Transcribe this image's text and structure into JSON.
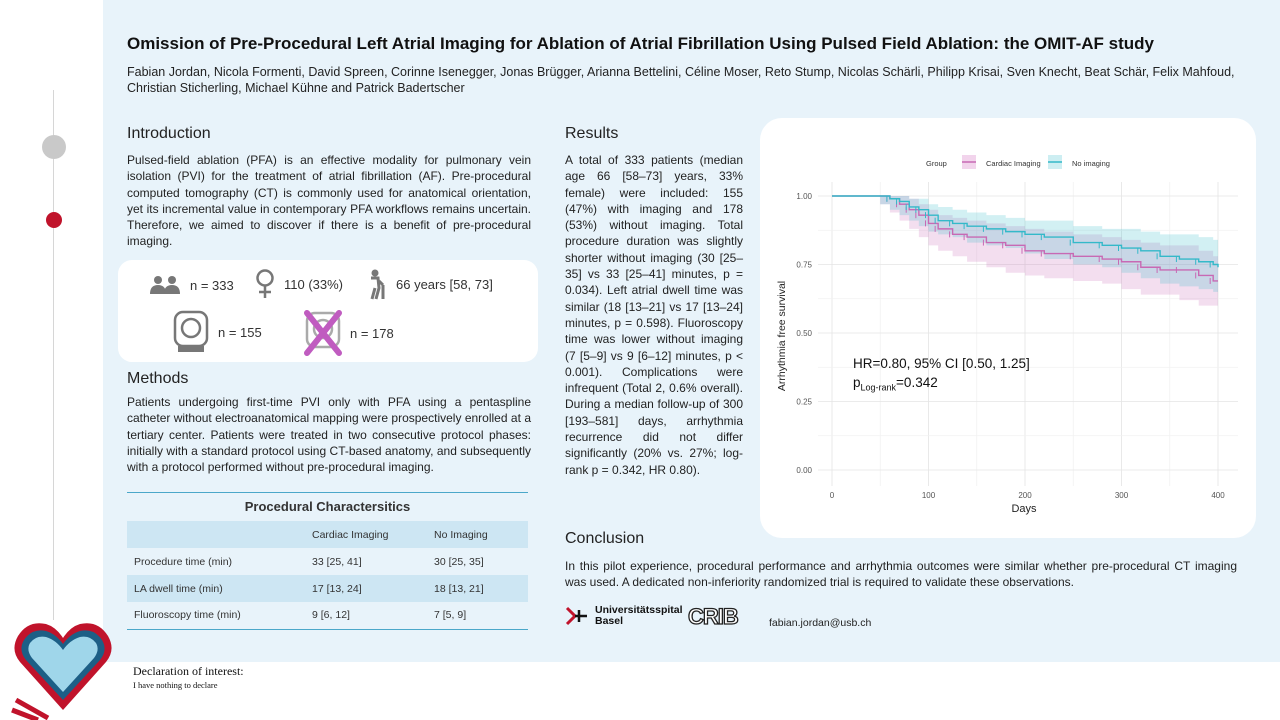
{
  "header": {
    "title": "Omission of Pre-Procedural Left Atrial Imaging for Ablation of Atrial Fibrillation Using Pulsed Field Ablation: the OMIT-AF study",
    "authors": "Fabian Jordan, Nicola Formenti, David Spreen, Corinne Isenegger, Jonas Brügger, Arianna Bettelini, Céline Moser, Reto Stump, Nicolas Schärli, Philipp Krisai, Sven Knecht, Beat Schär, Felix Mahfoud, Christian Sticherling, Michael Kühne and Patrick Badertscher"
  },
  "introduction": {
    "heading": "Introduction",
    "text": "Pulsed-field ablation (PFA) is an effective modality for pulmonary vein isolation (PVI) for the treatment of atrial fibrillation (AF). Pre-procedural computed tomography (CT) is commonly used for anatomical orientation, yet its incremental value in contemporary PFA workflows remains uncertain. Therefore, we aimed to discover if there is a benefit of pre-procedural imaging."
  },
  "stats": {
    "patients": "n = 333",
    "female": "110 (33%)",
    "age": "66 years [58, 73]",
    "imaging": "n = 155",
    "no_imaging": "n = 178",
    "icons": [
      "people-icon",
      "female-icon",
      "elderly-icon",
      "ct-scanner-icon",
      "no-ct-icon"
    ]
  },
  "methods": {
    "heading": "Methods",
    "text": "Patients undergoing first-time PVI only with PFA using a pentaspline catheter without electroanatomical mapping were prospectively enrolled at a tertiary center. Patients were treated in two consecutive protocol phases: initially with a standard protocol using CT-based anatomy, and subsequently with a protocol performed without pre-procedural imaging."
  },
  "table": {
    "title": "Procedural Charactersitics",
    "columns": [
      "",
      "Cardiac Imaging",
      "No Imaging"
    ],
    "rows": [
      [
        "Procedure time (min)",
        "33 [25, 41]",
        "30 [25, 35]"
      ],
      [
        "LA dwell time (min)",
        "17 [13, 24]",
        "18 [13, 21]"
      ],
      [
        "Fluoroscopy time (min)",
        "9 [6, 12]",
        "7 [5, 9]"
      ]
    ]
  },
  "results": {
    "heading": "Results",
    "text": "A total of 333 patients (median age 66 [58–73] years, 33% female) were included: 155 (47%) with imaging and 178 (53%) without imaging. Total procedure duration was slightly shorter without imaging (30 [25–35] vs 33 [25–41] minutes, p = 0.034). Left atrial dwell time was similar (18 [13–21] vs 17 [13–24] minutes, p = 0.598). Fluoroscopy time was lower without imaging (7 [5–9] vs 9 [6–12] minutes, p < 0.001). Complications were infrequent (Total 2, 0.6% overall). During a median follow-up of 300 [193–581] days, arrhythmia recurrence did not differ significantly (20% vs. 27%; log-rank p = 0.342, HR 0.80)."
  },
  "conclusion": {
    "heading": "Conclusion",
    "text": "In this pilot experience, procedural performance and arrhythmia outcomes were similar whether pre-procedural CT imaging was used. A dedicated non-inferiority randomized trial is required to validate these observations."
  },
  "chart_data": {
    "type": "line",
    "xlabel": "Days",
    "ylabel": "Arrhythmia free survival",
    "xlim": [
      0,
      400
    ],
    "ylim": [
      0,
      1
    ],
    "xticks": [
      "0",
      "100",
      "200",
      "300",
      "400"
    ],
    "yticks": [
      "0.00",
      "0.25",
      "0.50",
      "0.75",
      "1.00"
    ],
    "legend_title": "Group",
    "legend_position": "top",
    "grid": true,
    "series": [
      {
        "name": "Cardiac Imaging",
        "color": "#c869b4",
        "x": [
          0,
          50,
          60,
          70,
          80,
          90,
          100,
          110,
          125,
          140,
          160,
          180,
          200,
          220,
          250,
          280,
          300,
          320,
          340,
          360,
          380,
          395,
          400
        ],
        "y": [
          1.0,
          1.0,
          0.99,
          0.97,
          0.95,
          0.93,
          0.9,
          0.88,
          0.86,
          0.85,
          0.83,
          0.82,
          0.8,
          0.79,
          0.78,
          0.77,
          0.76,
          0.74,
          0.73,
          0.73,
          0.71,
          0.69,
          0.69
        ],
        "lower": [
          1.0,
          1.0,
          0.97,
          0.94,
          0.91,
          0.88,
          0.85,
          0.82,
          0.8,
          0.78,
          0.76,
          0.74,
          0.72,
          0.71,
          0.7,
          0.69,
          0.68,
          0.66,
          0.64,
          0.64,
          0.62,
          0.6,
          0.6
        ],
        "upper": [
          1.0,
          1.0,
          1.0,
          1.0,
          0.99,
          0.97,
          0.95,
          0.93,
          0.92,
          0.91,
          0.9,
          0.89,
          0.88,
          0.87,
          0.86,
          0.85,
          0.84,
          0.83,
          0.82,
          0.82,
          0.8,
          0.78,
          0.78
        ]
      },
      {
        "name": "No imaging",
        "color": "#34b9c9",
        "x": [
          0,
          50,
          60,
          70,
          80,
          90,
          100,
          110,
          125,
          140,
          160,
          180,
          200,
          220,
          250,
          280,
          300,
          320,
          340,
          360,
          380,
          395,
          400
        ],
        "y": [
          1.0,
          1.0,
          0.99,
          0.98,
          0.96,
          0.95,
          0.93,
          0.91,
          0.9,
          0.89,
          0.88,
          0.87,
          0.86,
          0.85,
          0.83,
          0.82,
          0.81,
          0.8,
          0.78,
          0.77,
          0.76,
          0.75,
          0.74
        ],
        "lower": [
          1.0,
          1.0,
          0.97,
          0.95,
          0.93,
          0.91,
          0.89,
          0.87,
          0.86,
          0.85,
          0.83,
          0.82,
          0.81,
          0.79,
          0.77,
          0.75,
          0.74,
          0.72,
          0.7,
          0.68,
          0.67,
          0.66,
          0.65
        ],
        "upper": [
          1.0,
          1.0,
          1.0,
          1.0,
          0.99,
          0.99,
          0.97,
          0.96,
          0.95,
          0.94,
          0.93,
          0.92,
          0.91,
          0.91,
          0.89,
          0.88,
          0.88,
          0.87,
          0.86,
          0.86,
          0.85,
          0.84,
          0.84
        ]
      }
    ],
    "annotations": {
      "hr": "HR=0.80, 95% CI [0.50, 1.25]",
      "p_prefix": "p",
      "p_sub": "Log-rank",
      "p_value": "=0.342"
    }
  },
  "footer": {
    "usb_logo_text_1": "Universitätsspital",
    "usb_logo_text_2": "Basel",
    "crib_logo": "CRIB",
    "email": "fabian.jordan@usb.ch",
    "declaration_title": "Declaration of interest:",
    "declaration_text": "I have nothing to declare"
  },
  "colors": {
    "accent": "#4aa7c9",
    "brand_red": "#c0132b",
    "background": "#e8f3fa",
    "imaging_color": "#c869b4",
    "no_imaging_color": "#34b9c9"
  }
}
